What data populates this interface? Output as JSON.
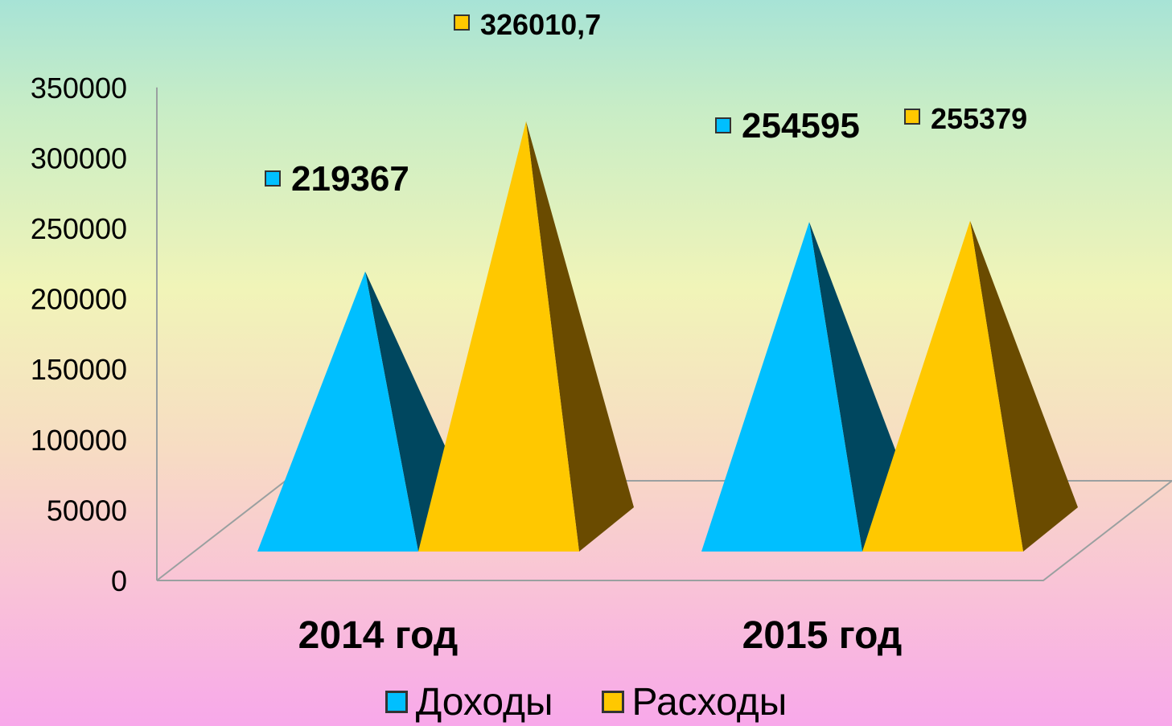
{
  "chart_data": {
    "type": "bar",
    "shape": "pyramid-3d",
    "categories": [
      "2014 год",
      "2015 год"
    ],
    "series": [
      {
        "name": "Доходы",
        "values": [
          219367,
          254595
        ],
        "color": "#00bfff",
        "shade": "#00475f"
      },
      {
        "name": "Расходы",
        "values": [
          326010.7,
          255379
        ],
        "color": "#ffc800",
        "shade": "#6a4b00"
      }
    ],
    "data_labels": [
      [
        "219367",
        "254595"
      ],
      [
        "326010,7",
        "255379"
      ]
    ],
    "yticks": [
      "0",
      "50000",
      "100000",
      "150000",
      "200000",
      "250000",
      "300000",
      "350000"
    ],
    "ylim": [
      0,
      350000
    ],
    "legend_position": "bottom",
    "grid": false
  }
}
